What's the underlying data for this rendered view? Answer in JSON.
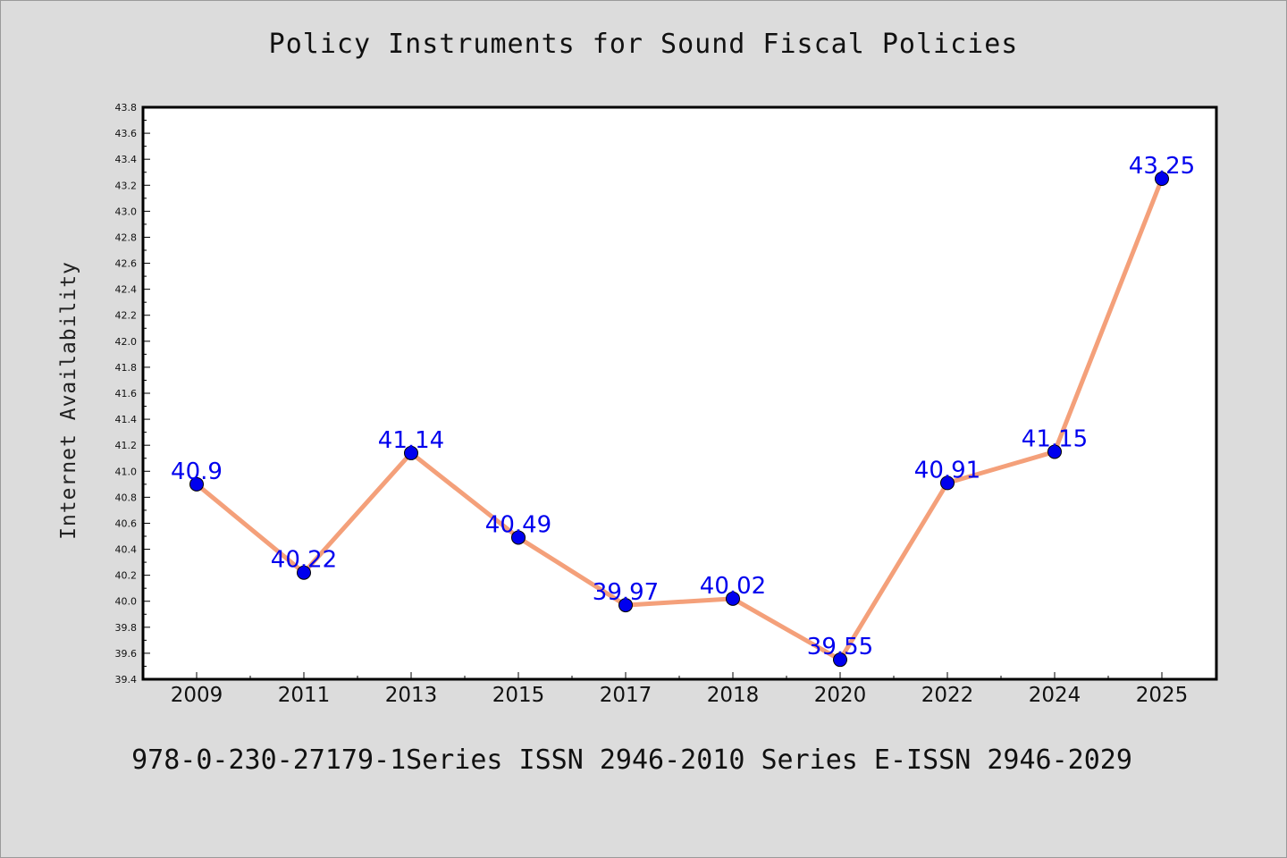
{
  "chart_data": {
    "type": "line",
    "title": "Policy Instruments for Sound Fiscal Policies",
    "xlabel": "",
    "ylabel": "Internet Availability",
    "categories": [
      "2009",
      "2011",
      "2013",
      "2015",
      "2017",
      "2018",
      "2020",
      "2022",
      "2024",
      "2025"
    ],
    "series": [
      {
        "values": [
          40.9,
          40.22,
          41.14,
          40.49,
          39.97,
          40.02,
          39.55,
          40.91,
          41.15,
          43.25
        ],
        "data_labels": [
          "40.9",
          "40.22",
          "41.14",
          "40.49",
          "39.97",
          "40.02",
          "39.55",
          "40.91",
          "41.15",
          "43.25"
        ],
        "line_color": "#f4a07a",
        "marker_color": "#0000ee",
        "label_color": "#0000ee"
      }
    ],
    "ylim": [
      39.4,
      43.8
    ],
    "ytick_step": 0.2,
    "grid": false,
    "legend": "none"
  },
  "footer_text": "978-0-230-27179-1Series ISSN 2946-2010 Series E-ISSN 2946-2029",
  "colors": {
    "figure_background": "#dcdcdc",
    "plot_background": "#ffffff",
    "axis": "#000000"
  }
}
